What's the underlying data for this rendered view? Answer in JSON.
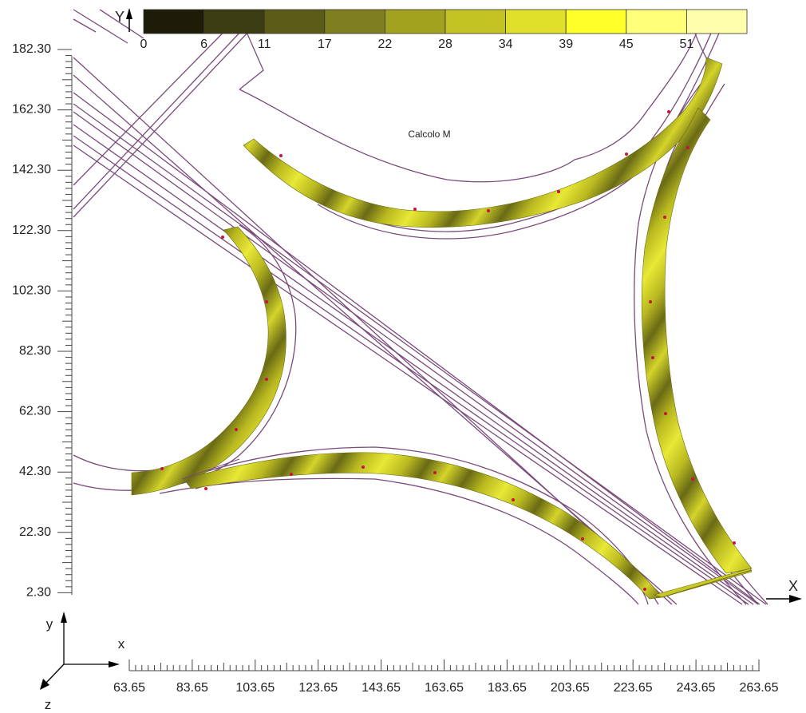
{
  "title": "Calcolo M",
  "axes": {
    "y_label": "Y",
    "x_label": "X",
    "triad": {
      "x": "x",
      "y": "y",
      "z": "z"
    }
  },
  "colorbar": {
    "ticks": [
      "0",
      "6",
      "11",
      "17",
      "22",
      "28",
      "34",
      "39",
      "45",
      "51"
    ],
    "colors": [
      "#1c1c08",
      "#3c3c12",
      "#5c5c18",
      "#7f7f1f",
      "#a2a21f",
      "#c3c323",
      "#e0e02a",
      "#ffff2a",
      "#ffff7a",
      "#ffffae"
    ]
  },
  "y_ticks": [
    "182.30",
    "162.30",
    "142.30",
    "122.30",
    "102.30",
    "82.30",
    "62.30",
    "42.30",
    "22.30",
    "2.30"
  ],
  "x_ticks": [
    "63.65",
    "83.65",
    "103.65",
    "123.65",
    "143.65",
    "163.65",
    "183.65",
    "203.65",
    "223.65",
    "243.65",
    "263.65"
  ],
  "colors": {
    "road_line": "#7a4a7a",
    "ramp_light": "#e4e432",
    "ramp_mid": "#b4b41e",
    "ramp_dark": "#5f5f14",
    "node_marker": "#c8143c"
  }
}
